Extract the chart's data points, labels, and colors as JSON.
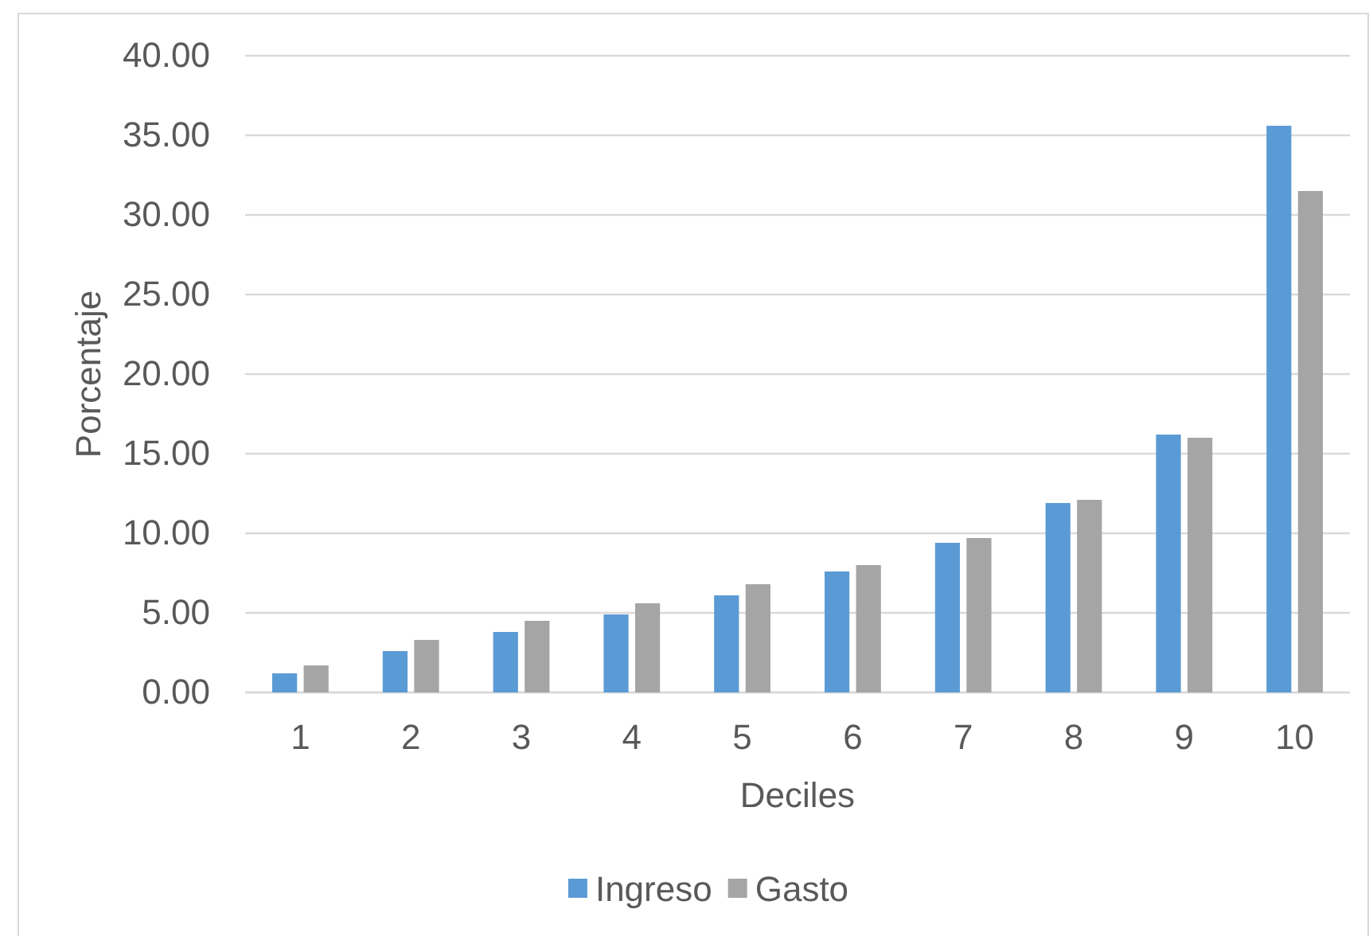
{
  "chart_data": {
    "type": "bar",
    "xlabel": "Deciles",
    "ylabel": "Porcentaje",
    "categories": [
      "1",
      "2",
      "3",
      "4",
      "5",
      "6",
      "7",
      "8",
      "9",
      "10"
    ],
    "series": [
      {
        "name": "Ingreso",
        "color": "#5b9bd5",
        "values": [
          1.2,
          2.6,
          3.8,
          4.9,
          6.1,
          7.6,
          9.4,
          11.9,
          16.2,
          35.6
        ]
      },
      {
        "name": "Gasto",
        "color": "#a5a5a5",
        "values": [
          1.7,
          3.3,
          4.5,
          5.6,
          6.8,
          8.0,
          9.7,
          12.1,
          16.0,
          31.5
        ]
      }
    ],
    "ylim": [
      0,
      40
    ],
    "yticks": [
      {
        "value": 0,
        "label": "0.00"
      },
      {
        "value": 5,
        "label": "5.00"
      },
      {
        "value": 10,
        "label": "10.00"
      },
      {
        "value": 15,
        "label": "15.00"
      },
      {
        "value": 20,
        "label": "20.00"
      },
      {
        "value": 25,
        "label": "25.00"
      },
      {
        "value": 30,
        "label": "30.00"
      },
      {
        "value": 35,
        "label": "35.00"
      },
      {
        "value": 40,
        "label": "40.00"
      }
    ],
    "grid": "y",
    "legend": "bottom"
  }
}
